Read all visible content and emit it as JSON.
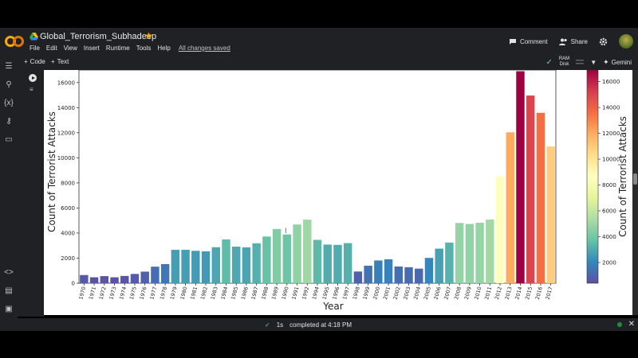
{
  "app": {
    "title": "Global_Terrorism_Subhadeep",
    "menus": [
      "File",
      "Edit",
      "View",
      "Insert",
      "Runtime",
      "Tools",
      "Help"
    ],
    "save_status": "All changes saved",
    "comment_label": "Comment",
    "share_label": "Share"
  },
  "toolbar": {
    "code_label": "Code",
    "text_label": "Text",
    "ram_label": "RAM",
    "disk_label": "Disk",
    "gemini_label": "Gemini"
  },
  "status": {
    "duration": "1s",
    "message": "completed at 4:18 PM"
  },
  "chart_data": {
    "type": "bar",
    "xlabel": "Year",
    "ylabel": "Count of Terrorist Attacks",
    "colorbar_label": "Count of Terrorist Attacks",
    "ylim": [
      0,
      17000
    ],
    "yticks": [
      0,
      2000,
      4000,
      6000,
      8000,
      10000,
      12000,
      14000,
      16000
    ],
    "colorbar_ticks": [
      2000,
      4000,
      6000,
      8000,
      10000,
      12000,
      14000,
      16000
    ],
    "colorbar_range": [
      400,
      16900
    ],
    "colormap": "Spectral",
    "categories": [
      "1970",
      "1971",
      "1972",
      "1973",
      "1974",
      "1975",
      "1976",
      "1977",
      "1978",
      "1979",
      "1980",
      "1981",
      "1982",
      "1983",
      "1984",
      "1985",
      "1986",
      "1987",
      "1988",
      "1989",
      "1990",
      "1991",
      "1992",
      "1994",
      "1995",
      "1996",
      "1997",
      "1998",
      "1999",
      "2000",
      "2001",
      "2002",
      "2003",
      "2004",
      "2005",
      "2006",
      "2007",
      "2008",
      "2009",
      "2010",
      "2011",
      "2012",
      "2013",
      "2014",
      "2015",
      "2016",
      "2017"
    ],
    "values": [
      651,
      471,
      568,
      473,
      581,
      740,
      923,
      1319,
      1526,
      2662,
      2662,
      2586,
      2544,
      2870,
      3495,
      2915,
      2860,
      3183,
      3721,
      4324,
      3887,
      4683,
      5071,
      3456,
      3081,
      3058,
      3197,
      934,
      1395,
      1814,
      1906,
      1333,
      1278,
      1166,
      2017,
      2758,
      3242,
      4805,
      4721,
      4826,
      5076,
      8522,
      12036,
      16903,
      14965,
      13587,
      10900
    ]
  }
}
